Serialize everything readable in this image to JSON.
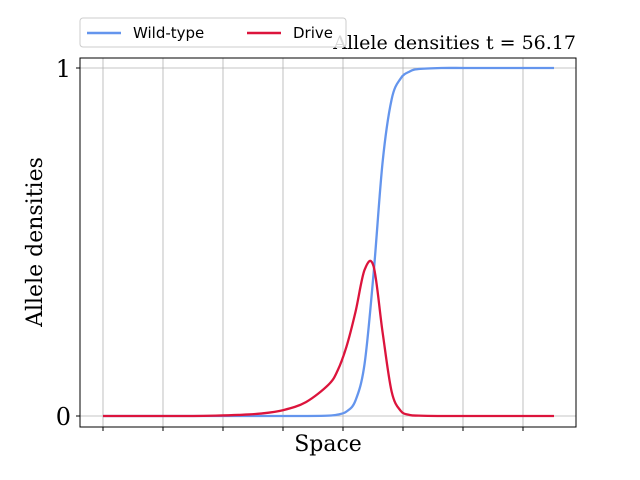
{
  "chart_data": {
    "type": "line",
    "title": "Allele densities t = 56.17",
    "xlabel": "Space",
    "ylabel": "Allele densities",
    "ylim": [
      0,
      1
    ],
    "y_ticks": [
      0,
      1
    ],
    "y_tick_labels": [
      "0",
      "1"
    ],
    "x_tick_labels_shown": false,
    "grid": true,
    "legend": {
      "placement": "top-left, above plot",
      "ncol": 2
    },
    "x": [
      0,
      0.05,
      0.1,
      0.15,
      0.2,
      0.25,
      0.3,
      0.35,
      0.4,
      0.45,
      0.5,
      0.52,
      0.54,
      0.56,
      0.58,
      0.6,
      0.62,
      0.64,
      0.66,
      0.68,
      0.7,
      0.75,
      0.8,
      0.85,
      0.9,
      0.95,
      1.0
    ],
    "series": [
      {
        "name": "Wild-type",
        "color": "#6495ed",
        "values": [
          0,
          0,
          0,
          0,
          0,
          0,
          0,
          0,
          0,
          0,
          0.001,
          0.004,
          0.013,
          0.045,
          0.15,
          0.41,
          0.73,
          0.91,
          0.97,
          0.99,
          0.997,
          1,
          1,
          1,
          1,
          1,
          1
        ]
      },
      {
        "name": "Drive",
        "color": "#dc143c",
        "values": [
          0,
          0,
          0,
          0,
          0,
          0.001,
          0.003,
          0.007,
          0.017,
          0.04,
          0.09,
          0.13,
          0.2,
          0.3,
          0.42,
          0.43,
          0.24,
          0.07,
          0.015,
          0.003,
          0.001,
          0,
          0,
          0,
          0,
          0,
          0
        ]
      }
    ]
  }
}
